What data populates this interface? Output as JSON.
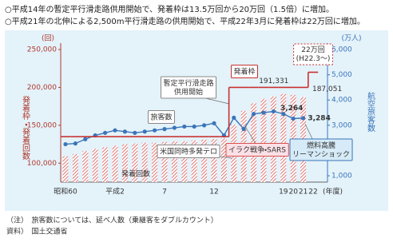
{
  "header": {
    "lines": [
      "○平成14年の暫定平行滑走路供用開始で、発着枠は13.5万回から20万回（1.5倍）に増加。",
      "○平成21年の北伸による2,500m平行滑走路の供用開始で、平成22年3月に発着枠は22万回に増加。"
    ]
  },
  "chart_data": {
    "type": "combo",
    "y_unit": "(回)",
    "y_title": "発着枠・発着回数",
    "y2_unit": "(万人)",
    "y2_title": "航空旅客数",
    "x_unit": "(年度)",
    "categories": [
      "昭和60",
      null,
      null,
      null,
      null,
      "平成2",
      null,
      null,
      null,
      null,
      "7",
      null,
      null,
      null,
      null,
      "12",
      null,
      null,
      null,
      null,
      null,
      null,
      "19",
      "20",
      "21",
      "22"
    ],
    "ylim": [
      75000,
      250000
    ],
    "yticks": [
      {
        "value": 100000,
        "label": "100,000"
      },
      {
        "value": 150000,
        "label": "150,000"
      },
      {
        "value": 200000,
        "label": "200,000"
      },
      {
        "value": 250000,
        "label": "250,000"
      }
    ],
    "y2lim": [
      750,
      6000
    ],
    "y2ticks": [
      {
        "value": 1000,
        "label": "1,000"
      },
      {
        "value": 2000,
        "label": "2,000"
      },
      {
        "value": 3000,
        "label": "3,000"
      },
      {
        "value": 4000,
        "label": "4,000"
      },
      {
        "value": 5000,
        "label": "5,000"
      },
      {
        "value": 6000,
        "label": "6,000"
      }
    ],
    "series": [
      {
        "name": "発着回数",
        "type": "bar",
        "color": "#d9534f",
        "values": [
          109000,
          112000,
          116000,
          119000,
          121000,
          123000,
          125000,
          126000,
          127000,
          127000,
          128000,
          129000,
          129000,
          130000,
          131000,
          132000,
          133000,
          151000,
          169000,
          179000,
          185000,
          188000,
          191331,
          190000,
          187051,
          null
        ],
        "value_labels": [
          null,
          null,
          null,
          null,
          null,
          null,
          null,
          null,
          null,
          null,
          null,
          null,
          null,
          null,
          null,
          null,
          null,
          null,
          null,
          null,
          null,
          null,
          "191,331",
          null,
          "187,051",
          null
        ]
      },
      {
        "name": "旅客数",
        "type": "line",
        "axis": "y2",
        "color": "#3a75b8",
        "values": [
          2250,
          2280,
          2450,
          2600,
          2700,
          2800,
          2750,
          2700,
          2750,
          2800,
          2850,
          2900,
          2950,
          2950,
          3000,
          3080,
          2600,
          3300,
          2850,
          3450,
          3500,
          3550,
          3450,
          3264,
          3284,
          null
        ],
        "value_labels": [
          null,
          null,
          null,
          null,
          null,
          null,
          null,
          null,
          null,
          null,
          null,
          null,
          null,
          null,
          null,
          null,
          null,
          null,
          null,
          null,
          null,
          null,
          null,
          "3,264",
          "3,284",
          null
        ]
      },
      {
        "name": "発着枠",
        "type": "step",
        "color": "#c8312f",
        "values": [
          135000,
          135000,
          135000,
          135000,
          135000,
          135000,
          135000,
          135000,
          135000,
          135000,
          135000,
          135000,
          135000,
          135000,
          135000,
          135000,
          135000,
          200000,
          200000,
          200000,
          200000,
          200000,
          200000,
          200000,
          200000,
          220000
        ]
      }
    ],
    "annotations": [
      {
        "text": [
          "暫定平行滑走路",
          "供用開始"
        ]
      },
      {
        "text": [
          "米国同時多発テロ"
        ]
      },
      {
        "text": [
          "イラク戦争・SARS"
        ]
      },
      {
        "text": [
          "燃料高騰",
          "リーマンショック"
        ]
      },
      {
        "text": [
          "22万回",
          "(H22.3～)"
        ]
      }
    ]
  },
  "footer": {
    "lines": [
      "（注）　旅客数については、延べ人数（乗継客をダブルカウント）",
      "資料）　国土交通省"
    ]
  }
}
